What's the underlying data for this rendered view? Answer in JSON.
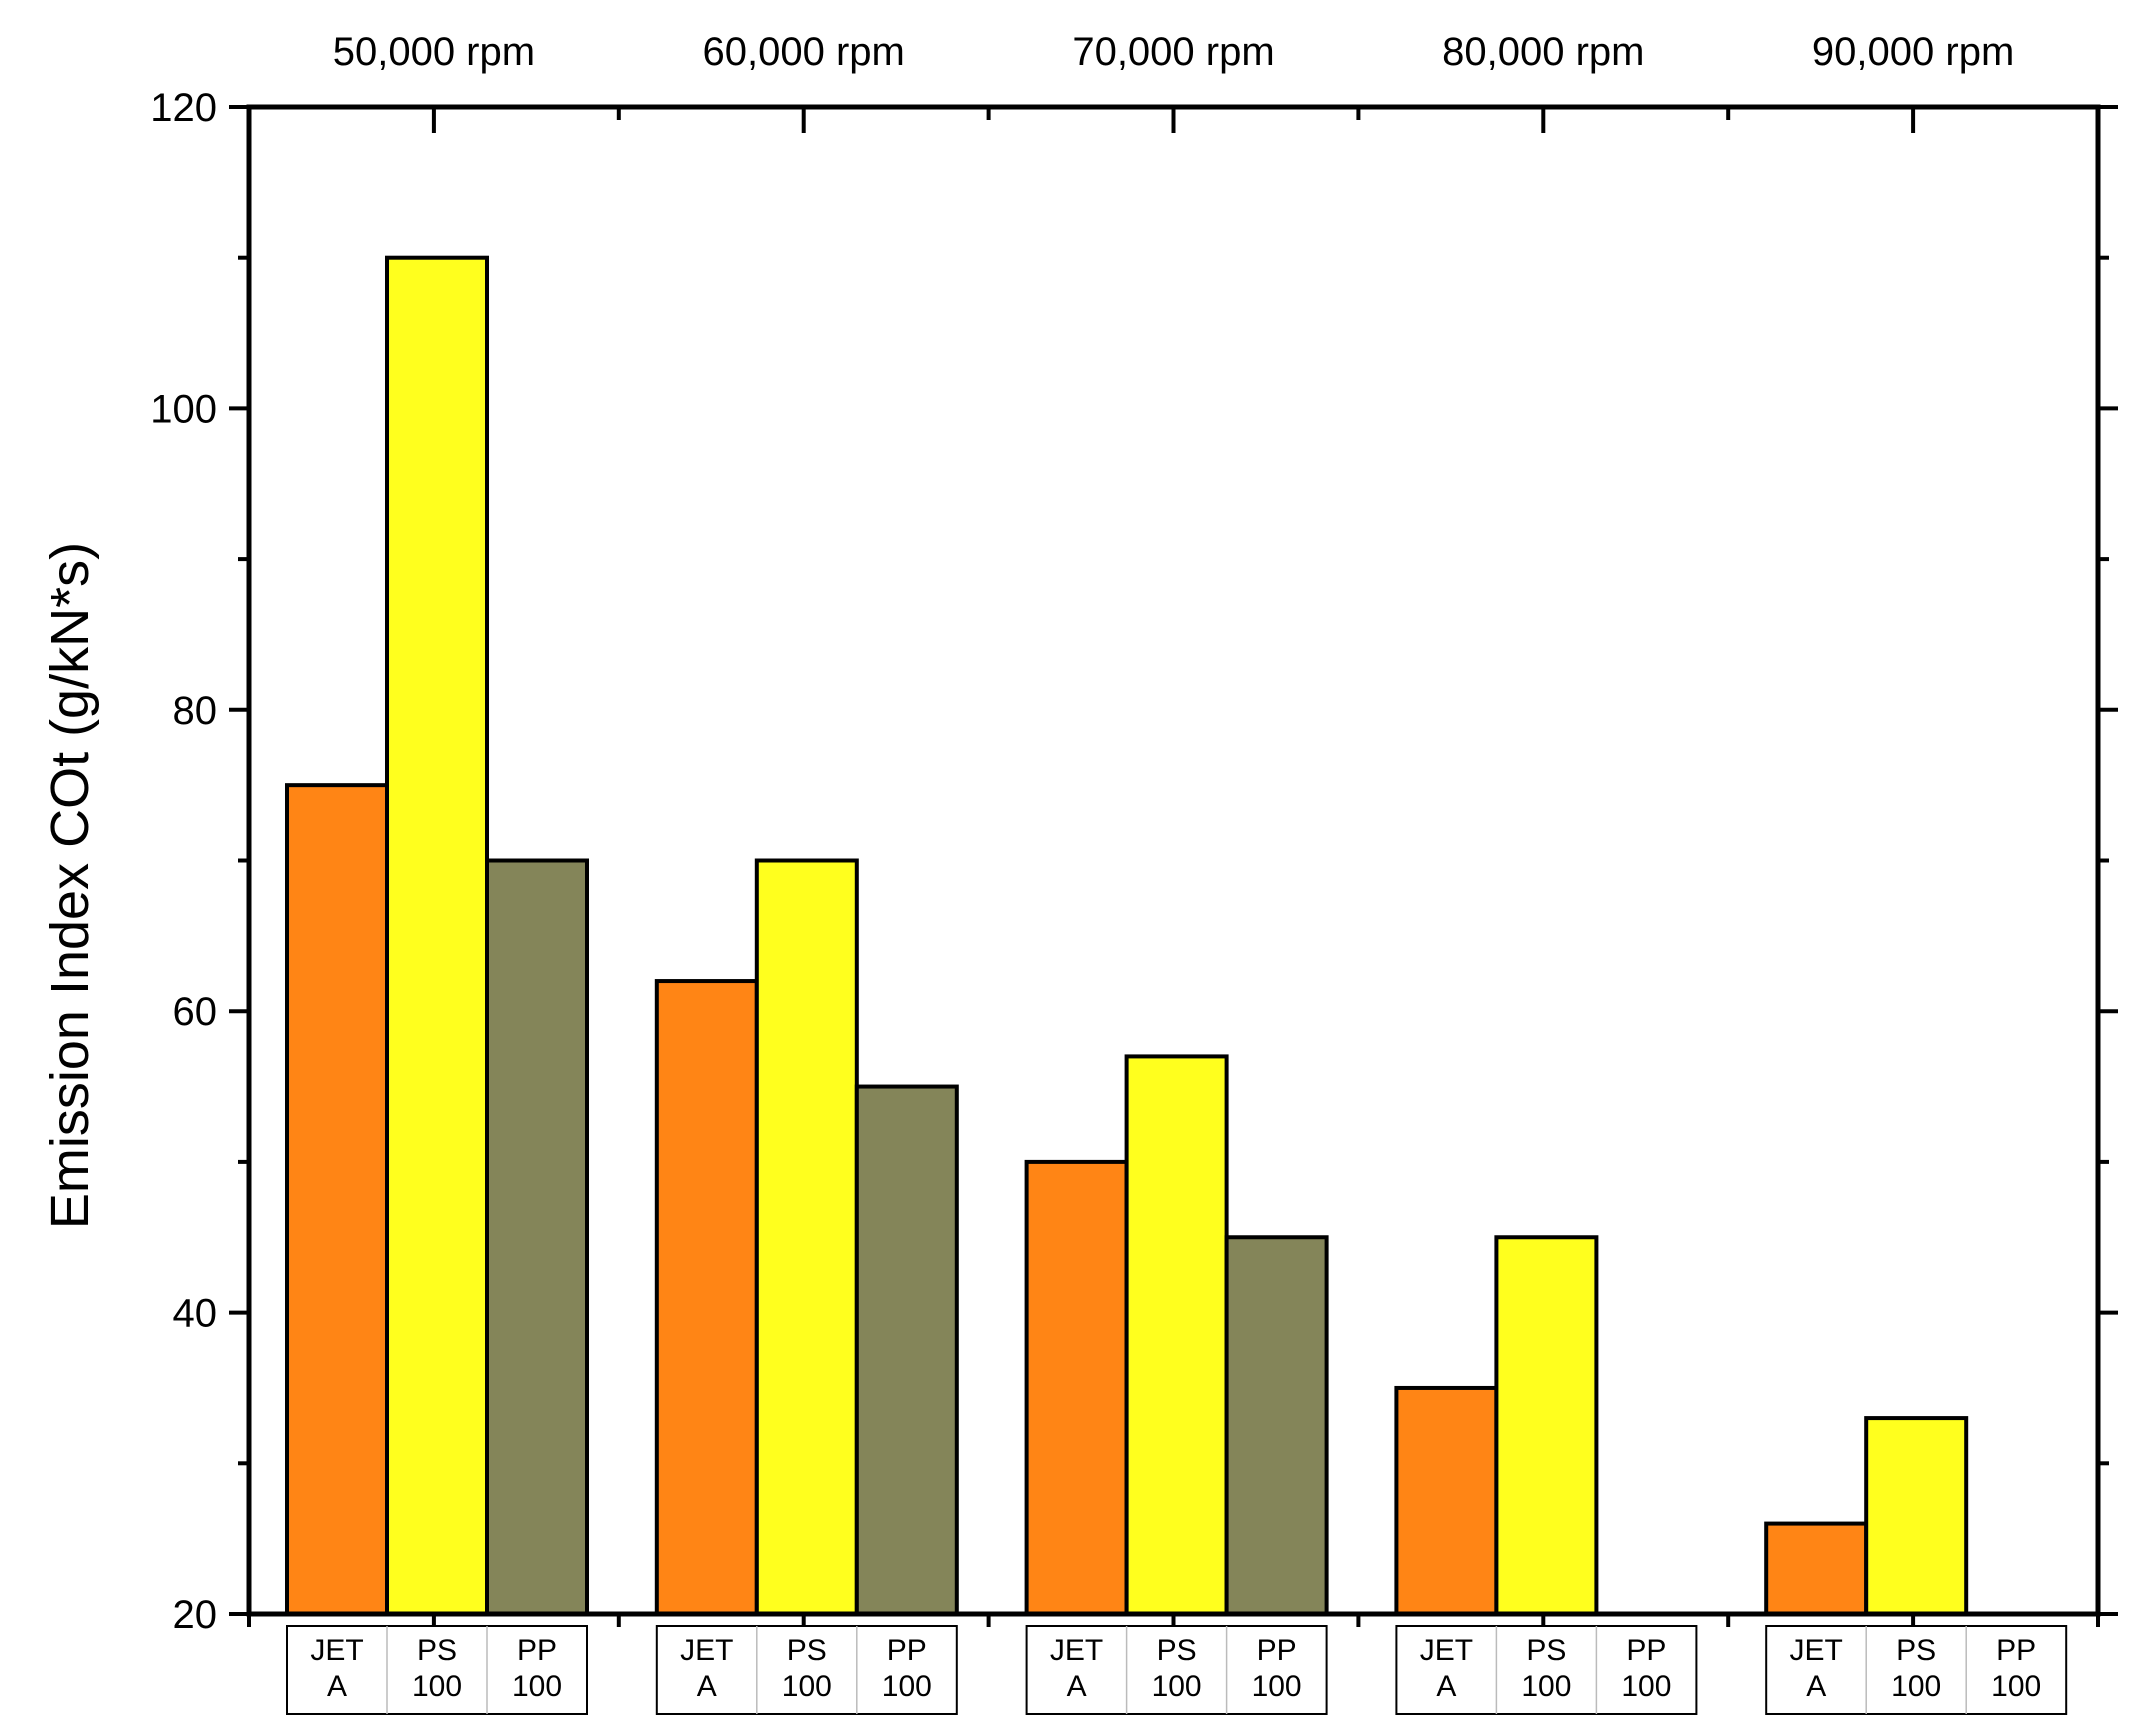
{
  "chart_data": {
    "type": "bar",
    "title": "",
    "xlabel": "",
    "ylabel": "Emission Index COt (g/kN*s)",
    "ylim": [
      20,
      120
    ],
    "yticks": [
      20,
      40,
      60,
      80,
      100,
      120
    ],
    "ytick_labels": [
      "20",
      "40",
      "60",
      "80",
      "100",
      "120"
    ],
    "grid": false,
    "legend": "none",
    "groups": [
      "50,000 rpm",
      "60,000 rpm",
      "70,000 rpm",
      "80,000 rpm",
      "90,000 rpm"
    ],
    "series": [
      {
        "name": "JET A",
        "label_lines": [
          "JET",
          "A"
        ],
        "color": "#FF8515",
        "values": [
          75,
          62,
          50,
          35,
          26
        ]
      },
      {
        "name": "PS 100",
        "label_lines": [
          "PS",
          "100"
        ],
        "color": "#FFFF1E",
        "values": [
          110,
          70,
          57,
          45,
          33
        ]
      },
      {
        "name": "PP 100",
        "label_lines": [
          "PP",
          "100"
        ],
        "color": "#848559",
        "values": [
          70,
          55,
          45,
          null,
          null
        ]
      }
    ]
  }
}
